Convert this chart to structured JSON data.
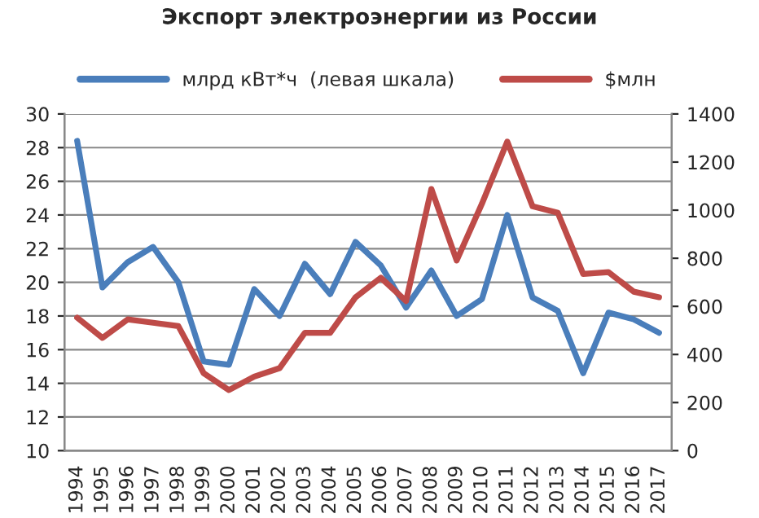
{
  "chart_data": {
    "type": "line",
    "title": "Экспорт электроэнергии из России",
    "categories": [
      "1994",
      "1995",
      "1996",
      "1997",
      "1998",
      "1999",
      "2000",
      "2001",
      "2002",
      "2003",
      "2004",
      "2005",
      "2006",
      "2007",
      "2008",
      "2009",
      "2010",
      "2011",
      "2012",
      "2013",
      "2014",
      "2015",
      "2016",
      "2017"
    ],
    "series": [
      {
        "name": "млрд кВт*ч  (левая шкала)",
        "color": "#4a7ebb",
        "values": [
          28.4,
          19.7,
          21.2,
          22.1,
          20.0,
          15.3,
          15.1,
          19.6,
          18.0,
          21.1,
          19.3,
          22.4,
          21.0,
          18.5,
          20.7,
          18.0,
          19.0,
          24.0,
          19.1,
          18.3,
          14.6,
          18.2,
          17.8,
          17.0
        ]
      },
      {
        "name": "$млн",
        "color": "#be4b48",
        "axis": "y2",
        "values": [
          553,
          469,
          546,
          532,
          518,
          322,
          252,
          308,
          343,
          490,
          490,
          637,
          719,
          622,
          1088,
          791,
          1027,
          1285,
          1016,
          989,
          735,
          742,
          661,
          638
        ]
      }
    ],
    "ylim": [
      10,
      30
    ],
    "yticks": [
      10,
      12,
      14,
      16,
      18,
      20,
      22,
      24,
      26,
      28,
      30
    ],
    "y2lim": [
      0,
      1400
    ],
    "y2ticks": [
      0,
      200,
      400,
      600,
      800,
      1000,
      1200,
      1400
    ],
    "grid": "y",
    "legend": "top",
    "marker": "none",
    "line_style": "solid"
  }
}
